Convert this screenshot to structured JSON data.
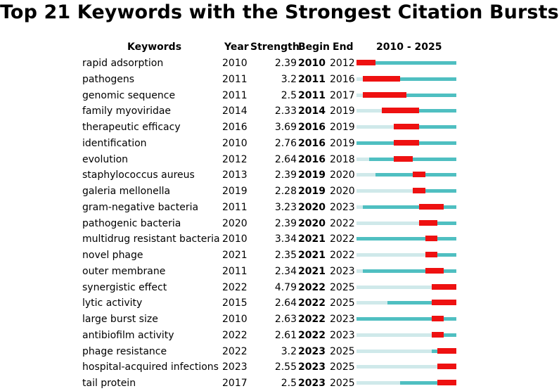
{
  "chart_data": {
    "type": "table",
    "title": "Top 21 Keywords with the Strongest Citation Bursts",
    "columns": [
      "Keywords",
      "Year",
      "Strength",
      "Begin",
      "End",
      "2010 - 2025"
    ],
    "range_start": 2010,
    "range_end": 2025,
    "colors": {
      "burst": "#ee1111",
      "active": "#4fbfc1",
      "inactive": "#cfe9ea"
    },
    "rows": [
      {
        "keyword": "rapid adsorption",
        "year": 2010,
        "strength": "2.39",
        "begin": 2010,
        "end": 2012
      },
      {
        "keyword": "pathogens",
        "year": 2011,
        "strength": "3.2",
        "begin": 2011,
        "end": 2016
      },
      {
        "keyword": "genomic sequence",
        "year": 2011,
        "strength": "2.5",
        "begin": 2011,
        "end": 2017
      },
      {
        "keyword": "family myoviridae",
        "year": 2014,
        "strength": "2.33",
        "begin": 2014,
        "end": 2019
      },
      {
        "keyword": "therapeutic efficacy",
        "year": 2016,
        "strength": "3.69",
        "begin": 2016,
        "end": 2019
      },
      {
        "keyword": "identification",
        "year": 2010,
        "strength": "2.76",
        "begin": 2016,
        "end": 2019
      },
      {
        "keyword": "evolution",
        "year": 2012,
        "strength": "2.64",
        "begin": 2016,
        "end": 2018
      },
      {
        "keyword": "staphylococcus aureus",
        "year": 2013,
        "strength": "2.39",
        "begin": 2019,
        "end": 2020
      },
      {
        "keyword": "galeria mellonella",
        "year": 2019,
        "strength": "2.28",
        "begin": 2019,
        "end": 2020
      },
      {
        "keyword": "gram-negative bacteria",
        "year": 2011,
        "strength": "3.23",
        "begin": 2020,
        "end": 2023
      },
      {
        "keyword": "pathogenic bacteria",
        "year": 2020,
        "strength": "2.39",
        "begin": 2020,
        "end": 2022
      },
      {
        "keyword": "multidrug resistant bacteria",
        "year": 2010,
        "strength": "3.34",
        "begin": 2021,
        "end": 2022
      },
      {
        "keyword": "novel phage",
        "year": 2021,
        "strength": "2.35",
        "begin": 2021,
        "end": 2022
      },
      {
        "keyword": "outer membrane",
        "year": 2011,
        "strength": "2.34",
        "begin": 2021,
        "end": 2023
      },
      {
        "keyword": "synergistic effect",
        "year": 2022,
        "strength": "4.79",
        "begin": 2022,
        "end": 2025
      },
      {
        "keyword": "lytic activity",
        "year": 2015,
        "strength": "2.64",
        "begin": 2022,
        "end": 2025
      },
      {
        "keyword": "large burst size",
        "year": 2010,
        "strength": "2.63",
        "begin": 2022,
        "end": 2023
      },
      {
        "keyword": "antibiofilm activity",
        "year": 2022,
        "strength": "2.61",
        "begin": 2022,
        "end": 2023
      },
      {
        "keyword": "phage resistance",
        "year": 2022,
        "strength": "3.2",
        "begin": 2023,
        "end": 2025
      },
      {
        "keyword": "hospital-acquired infections",
        "year": 2023,
        "strength": "2.55",
        "begin": 2023,
        "end": 2025
      },
      {
        "keyword": "tail protein",
        "year": 2017,
        "strength": "2.5",
        "begin": 2023,
        "end": 2025
      }
    ]
  }
}
